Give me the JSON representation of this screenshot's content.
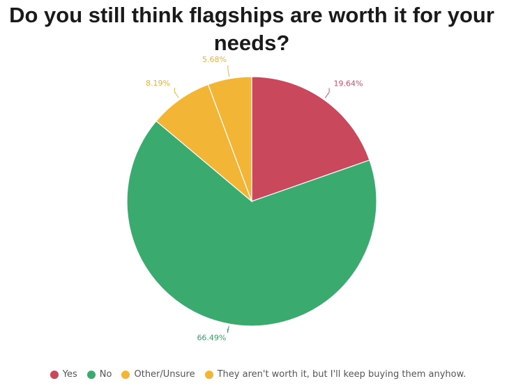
{
  "chart_data": {
    "type": "pie",
    "title": "Do you still think flagships are worth it for your needs?",
    "legend_position": "bottom",
    "start_angle": "top, clockwise",
    "slices": [
      {
        "name": "Yes",
        "value": 19.64,
        "label": "19.64%",
        "color": "#c9485b",
        "label_color": "#c94f66"
      },
      {
        "name": "No",
        "value": 66.49,
        "label": "66.49%",
        "color": "#3aaa6e",
        "label_color": "#3a9e68"
      },
      {
        "name": "Other/Unsure",
        "value": 8.19,
        "label": "8.19%",
        "color": "#f3b535",
        "label_color": "#e8b040"
      },
      {
        "name": "They aren't worth it, but I'll keep buying them anyhow.",
        "value": 5.68,
        "label": "5.68%",
        "color": "#f3b535",
        "label_color": "#e8b040"
      }
    ]
  }
}
